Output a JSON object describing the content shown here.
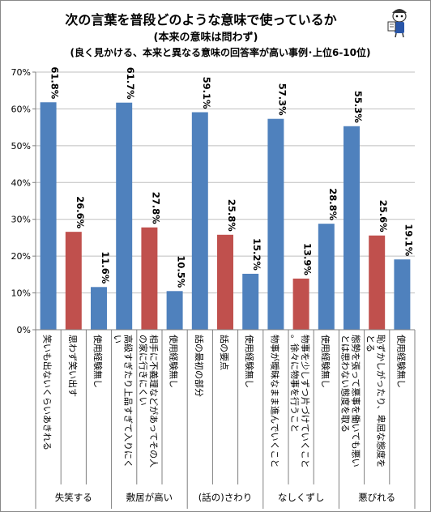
{
  "chart_data": {
    "type": "bar",
    "title": "次の言葉を普段どのような意味で使っているか",
    "subtitle1": "(本来の意味は問わず)",
    "subtitle2": "(良く見かける、本来と異なる意味の回答率が高い事例･上位6-10位)",
    "y_ticks": [
      "0%",
      "10%",
      "20%",
      "30%",
      "40%",
      "50%",
      "60%",
      "70%"
    ],
    "ylim": [
      0,
      70
    ],
    "grid": true,
    "legend": "none",
    "colors": {
      "blue": "#4f81bd",
      "red": "#c0504d"
    },
    "groups": [
      {
        "name": "失笑する",
        "bars": [
          {
            "label": "笑いも出ないくらいあきれる",
            "value": 61.8,
            "value_label": "61.8%",
            "color": "blue"
          },
          {
            "label": "思わず笑い出す",
            "value": 26.6,
            "value_label": "26.6%",
            "color": "red"
          },
          {
            "label": "使用経験無し",
            "value": 11.6,
            "value_label": "11.6%",
            "color": "blue"
          }
        ]
      },
      {
        "name": "敷居が高い",
        "bars": [
          {
            "label": "高級すぎたり上品すぎて入りにくい",
            "value": 61.7,
            "value_label": "61.7%",
            "color": "blue"
          },
          {
            "label": "相手に不義理などがあってその人の家に行きにくい",
            "value": 27.8,
            "value_label": "27.8%",
            "color": "red"
          },
          {
            "label": "使用経験無し",
            "value": 10.5,
            "value_label": "10.5%",
            "color": "blue"
          }
        ]
      },
      {
        "name": "(話の)さわり",
        "bars": [
          {
            "label": "話の最初の部分",
            "value": 59.1,
            "value_label": "59.1%",
            "color": "blue"
          },
          {
            "label": "話の要点",
            "value": 25.8,
            "value_label": "25.8%",
            "color": "red"
          },
          {
            "label": "使用経験無し",
            "value": 15.2,
            "value_label": "15.2%",
            "color": "blue"
          }
        ]
      },
      {
        "name": "なしくずし",
        "bars": [
          {
            "label": "物事が曖昧なまま進んでいくこと",
            "value": 57.3,
            "value_label": "57.3%",
            "color": "blue"
          },
          {
            "label": "物事を少しずつ片づけていくこと。徐々に物事を行うこと",
            "value": 13.9,
            "value_label": "13.9%",
            "color": "red"
          },
          {
            "label": "使用経験無し",
            "value": 28.8,
            "value_label": "28.8%",
            "color": "blue"
          }
        ]
      },
      {
        "name": "悪びれる",
        "bars": [
          {
            "label": "態勢を張って悪事を働いても悪いとは思わない態度を取る",
            "value": 55.3,
            "value_label": "55.3%",
            "color": "blue"
          },
          {
            "label": "恥ずかしがったり、卑屈な態度をとる",
            "value": 25.6,
            "value_label": "25.6%",
            "color": "red"
          },
          {
            "label": "使用経験無し",
            "value": 19.1,
            "value_label": "19.1%",
            "color": "blue"
          }
        ]
      }
    ]
  }
}
